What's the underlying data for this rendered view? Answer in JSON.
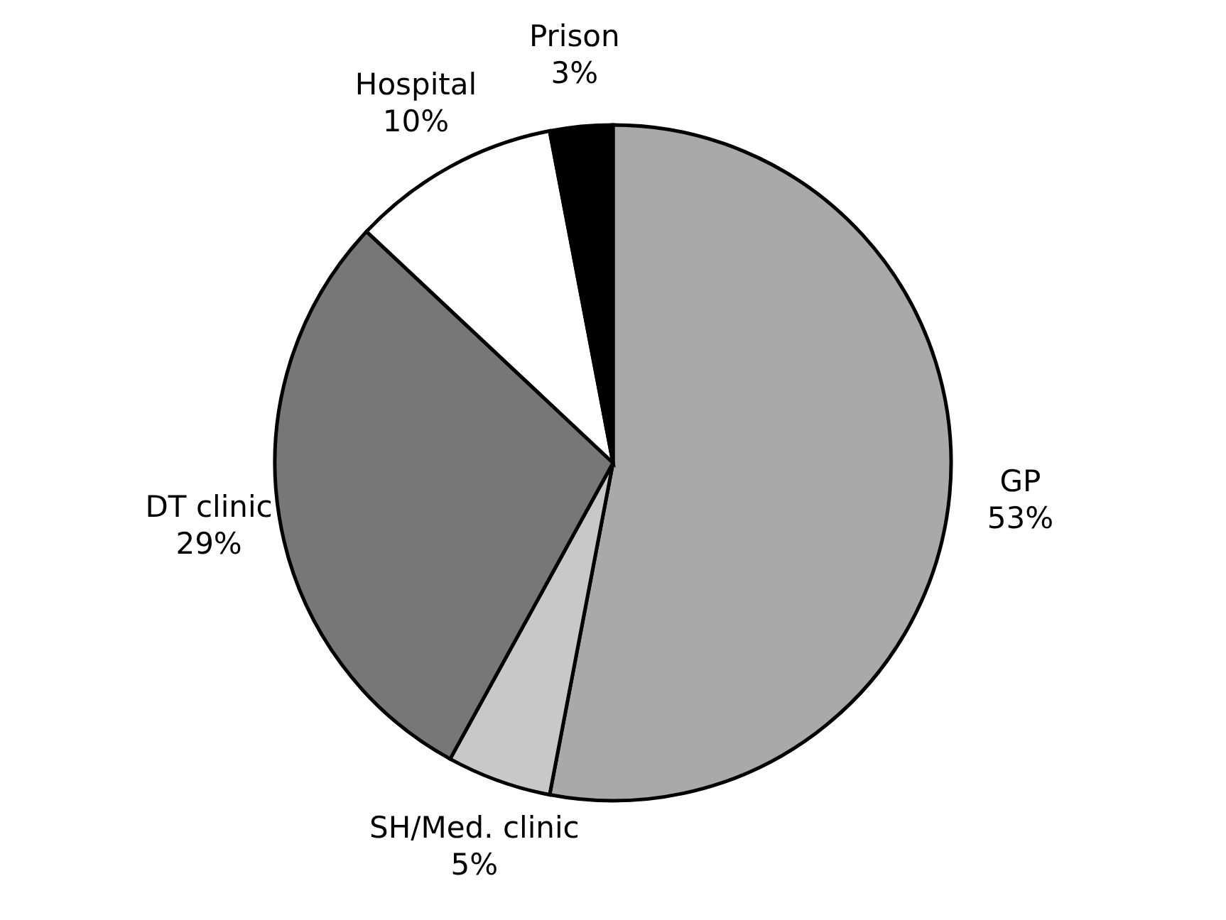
{
  "chart_data": {
    "type": "pie",
    "categories": [
      "GP",
      "SH/Med. clinic",
      "DT clinic",
      "Hospital",
      "Prison"
    ],
    "values": [
      53,
      5,
      29,
      10,
      3
    ],
    "colors": [
      "#a9a9a9",
      "#c8c8c8",
      "#777777",
      "#ffffff",
      "#000000"
    ],
    "value_labels": [
      "53%",
      "5%",
      "29%",
      "10%",
      "3%"
    ]
  }
}
